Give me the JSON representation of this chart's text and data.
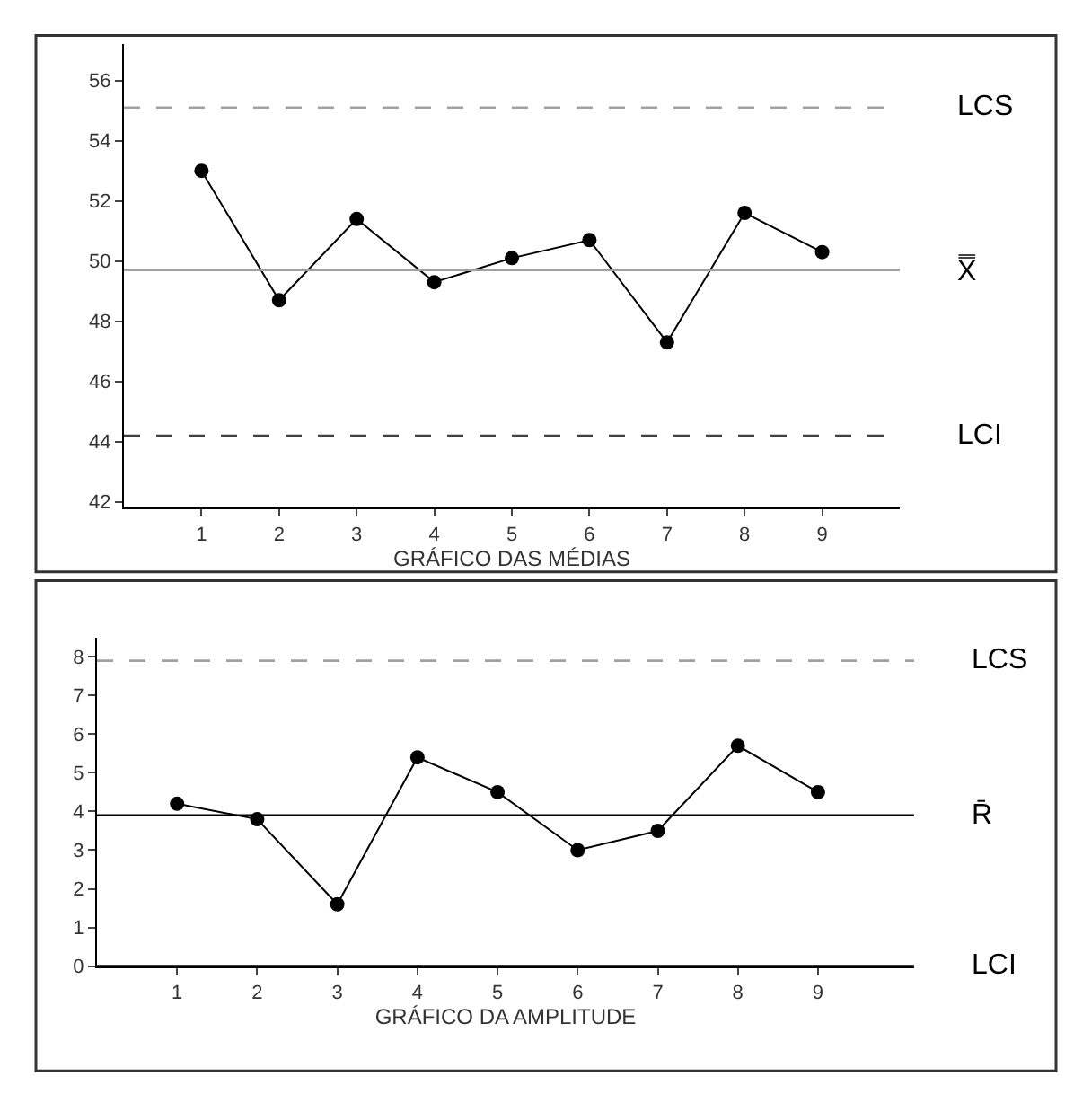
{
  "chart_data": [
    {
      "type": "line",
      "x": [
        1,
        2,
        3,
        4,
        5,
        6,
        7,
        8,
        9
      ],
      "values": [
        53.0,
        48.7,
        51.4,
        49.3,
        50.1,
        50.7,
        47.3,
        51.6,
        50.3
      ],
      "color": "#000000",
      "marker": "circle",
      "line_style": "solid",
      "xlabel": "GRÁFICO DAS MÉDIAS",
      "xlim": [
        0,
        10
      ],
      "xticks": [
        1,
        2,
        3,
        4,
        5,
        6,
        7,
        8,
        9
      ],
      "ylim": [
        41.8,
        57.2
      ],
      "yticks": [
        42,
        44,
        46,
        48,
        50,
        52,
        54,
        56
      ],
      "ref_lines": [
        {
          "axis": "y",
          "value": 55.1,
          "label": "LCS",
          "color": "#a0a0a0",
          "line_style": "dashed"
        },
        {
          "axis": "y",
          "value": 49.7,
          "label": "X̿",
          "color": "#a0a0a0",
          "line_style": "solid"
        },
        {
          "axis": "y",
          "value": 44.2,
          "label": "LCI",
          "color": "#404040",
          "line_style": "dashed"
        }
      ]
    },
    {
      "type": "line",
      "x": [
        1,
        2,
        3,
        4,
        5,
        6,
        7,
        8,
        9
      ],
      "values": [
        4.2,
        3.8,
        1.6,
        5.4,
        4.5,
        3.0,
        3.5,
        5.7,
        4.5
      ],
      "color": "#000000",
      "marker": "circle",
      "line_style": "solid",
      "xlabel": "GRÁFICO DA AMPLITUDE",
      "xlim": [
        0,
        10.2
      ],
      "xticks": [
        1,
        2,
        3,
        4,
        5,
        6,
        7,
        8,
        9
      ],
      "ylim": [
        0,
        8.5
      ],
      "yticks": [
        0,
        1,
        2,
        3,
        4,
        5,
        6,
        7,
        8
      ],
      "ref_lines": [
        {
          "axis": "y",
          "value": 7.9,
          "label": "LCS",
          "color": "#a0a0a0",
          "line_style": "dashed"
        },
        {
          "axis": "y",
          "value": 3.9,
          "label": "R̄",
          "color": "#000000",
          "line_style": "solid"
        },
        {
          "axis": "y",
          "value": 0,
          "label": "LCI",
          "color": "#000000",
          "line_style": "solid"
        }
      ]
    }
  ]
}
